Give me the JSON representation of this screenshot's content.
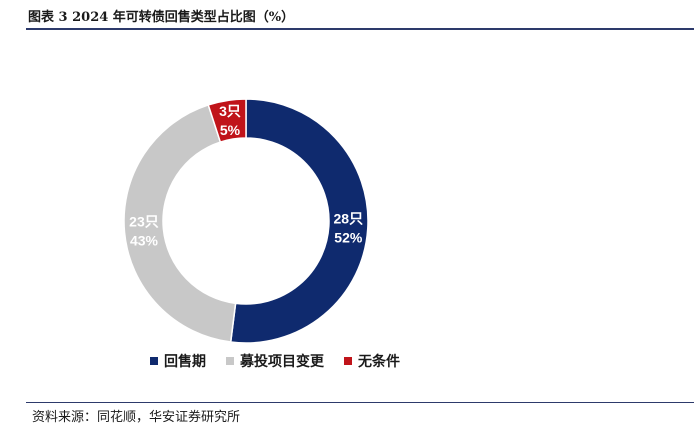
{
  "header": {
    "title": "图表 3  2024 年可转债回售类型占比图（%）"
  },
  "footer": {
    "source": "资料来源：同花顺，华安证券研究所"
  },
  "chart_data": {
    "type": "pie",
    "variant": "donut",
    "start": "12 o'clock",
    "direction": "clockwise",
    "legend_position": "bottom",
    "categories": [
      "回售期",
      "募投项目变更",
      "无条件"
    ],
    "counts": [
      28,
      23,
      3
    ],
    "count_labels": [
      "28只",
      "23只",
      "3只"
    ],
    "percent_labels": [
      "52%",
      "43%",
      "5%"
    ],
    "values": [
      52,
      43,
      5
    ],
    "colors": [
      "#0f2a6e",
      "#c8c8c8",
      "#c0141a"
    ],
    "label_colors": [
      "#ffffff",
      "#ffffff",
      "#ffffff"
    ]
  }
}
